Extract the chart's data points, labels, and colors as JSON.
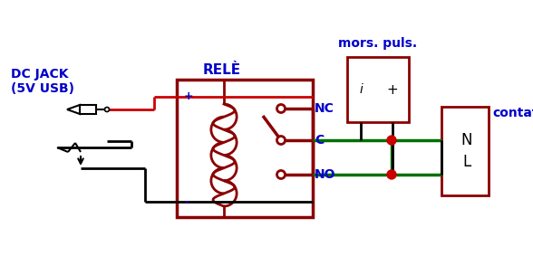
{
  "bg_color": "#ffffff",
  "dark_red": "#8B0000",
  "red": "#CC0000",
  "blue": "#0000CC",
  "green": "#007000",
  "black": "#000000",
  "figsize": [
    5.88,
    2.83
  ],
  "dpi": 100,
  "labels": {
    "dc_jack": "DC JACK\n(5V USB)",
    "rele": "RELÈ",
    "nc": "NC",
    "c": "C",
    "no": "NO",
    "mors_puls": "mors. puls.",
    "contatto": "contatto",
    "plus_relay": "+",
    "minus_relay": "-",
    "nl": "N\nL"
  }
}
